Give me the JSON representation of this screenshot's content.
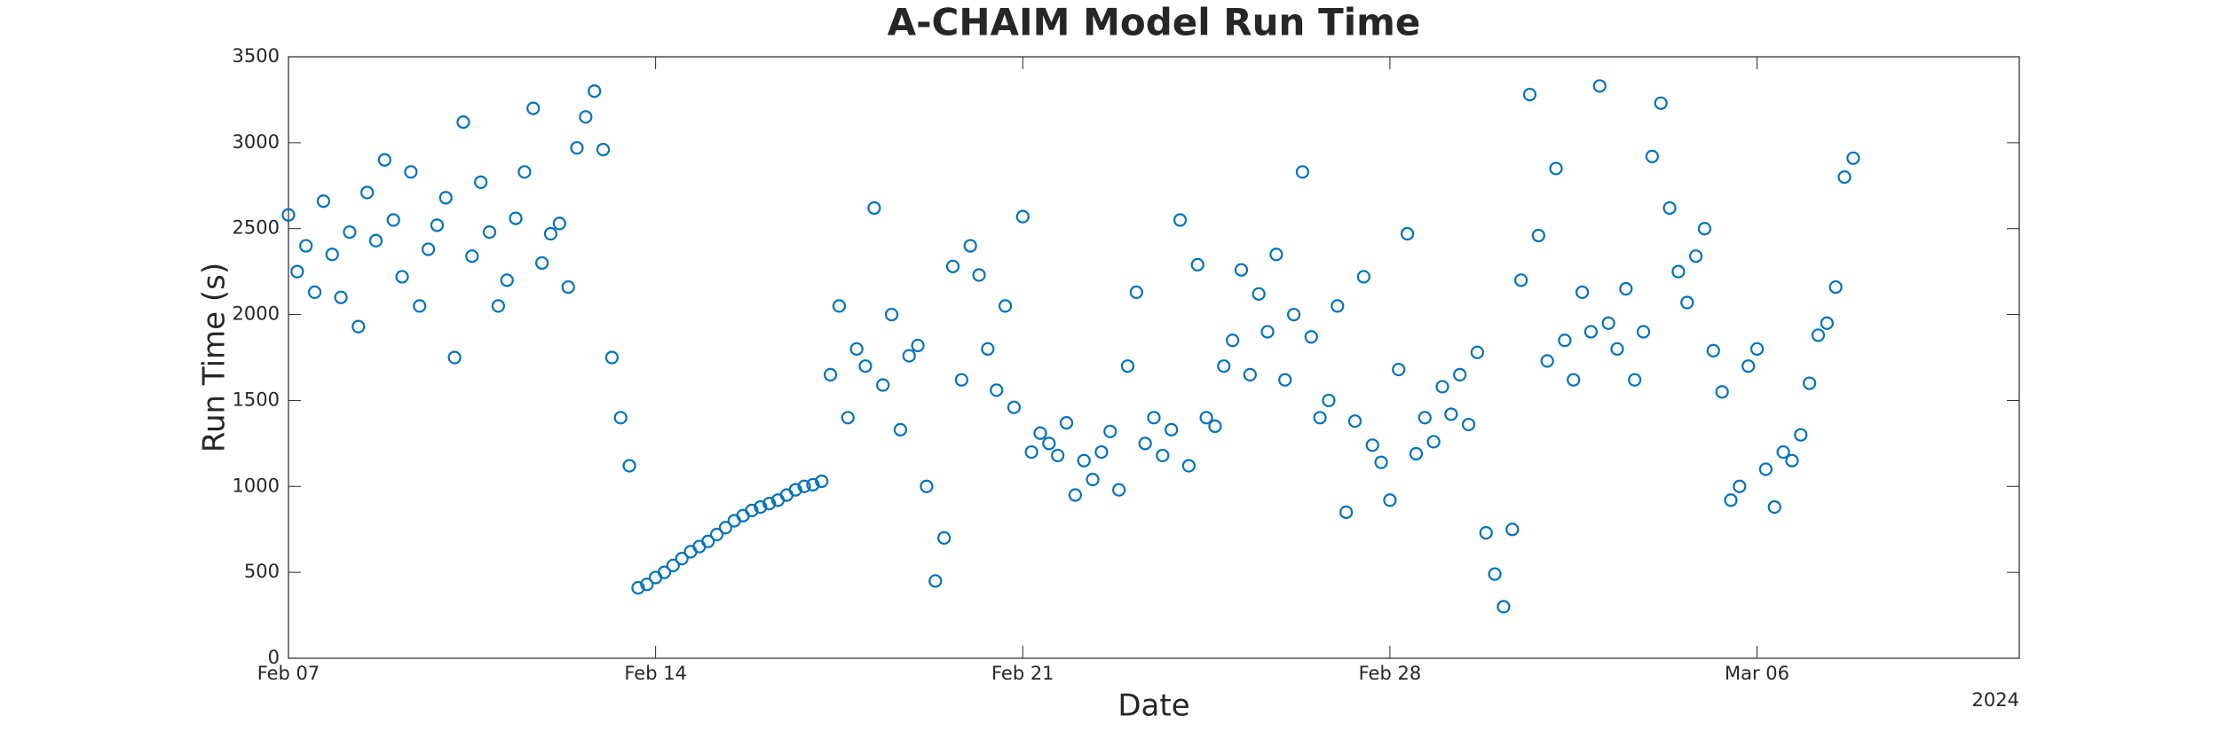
{
  "chart_data": {
    "type": "scatter",
    "title": "A-CHAIM Model Run Time",
    "x_label": "Date",
    "y_label": "Run Time (s)",
    "x_year_label": "2024",
    "color": "#0072bd",
    "grid": false,
    "xlim": [
      "2024-02-07",
      "2024-03-11"
    ],
    "xticks": [
      {
        "value": "2024-02-07",
        "label": "Feb 07"
      },
      {
        "value": "2024-02-14",
        "label": "Feb 14"
      },
      {
        "value": "2024-02-21",
        "label": "Feb 21"
      },
      {
        "value": "2024-02-28",
        "label": "Feb 28"
      },
      {
        "value": "2024-03-06",
        "label": "Mar 06"
      }
    ],
    "ylim": [
      0,
      3500
    ],
    "yticks": [
      0,
      500,
      1000,
      1500,
      2000,
      2500,
      3000,
      3500
    ],
    "x": [
      "2024-02-07T00:00",
      "2024-02-07T04:00",
      "2024-02-07T08:00",
      "2024-02-07T12:00",
      "2024-02-07T16:00",
      "2024-02-07T20:00",
      "2024-02-08T00:00",
      "2024-02-08T04:00",
      "2024-02-08T08:00",
      "2024-02-08T12:00",
      "2024-02-08T16:00",
      "2024-02-08T20:00",
      "2024-02-09T00:00",
      "2024-02-09T04:00",
      "2024-02-09T08:00",
      "2024-02-09T12:00",
      "2024-02-09T16:00",
      "2024-02-09T20:00",
      "2024-02-10T00:00",
      "2024-02-10T04:00",
      "2024-02-10T08:00",
      "2024-02-10T12:00",
      "2024-02-10T16:00",
      "2024-02-10T20:00",
      "2024-02-11T00:00",
      "2024-02-11T04:00",
      "2024-02-11T08:00",
      "2024-02-11T12:00",
      "2024-02-11T16:00",
      "2024-02-11T20:00",
      "2024-02-12T00:00",
      "2024-02-12T04:00",
      "2024-02-12T08:00",
      "2024-02-12T12:00",
      "2024-02-12T16:00",
      "2024-02-12T20:00",
      "2024-02-13T00:00",
      "2024-02-13T04:00",
      "2024-02-13T08:00",
      "2024-02-13T12:00",
      "2024-02-13T16:00",
      "2024-02-13T20:00",
      "2024-02-14T00:00",
      "2024-02-14T04:00",
      "2024-02-14T08:00",
      "2024-02-14T12:00",
      "2024-02-14T16:00",
      "2024-02-14T20:00",
      "2024-02-15T00:00",
      "2024-02-15T04:00",
      "2024-02-15T08:00",
      "2024-02-15T12:00",
      "2024-02-15T16:00",
      "2024-02-15T20:00",
      "2024-02-16T00:00",
      "2024-02-16T04:00",
      "2024-02-16T08:00",
      "2024-02-16T12:00",
      "2024-02-16T16:00",
      "2024-02-16T20:00",
      "2024-02-17T00:00",
      "2024-02-17T04:00",
      "2024-02-17T08:00",
      "2024-02-17T12:00",
      "2024-02-17T16:00",
      "2024-02-17T20:00",
      "2024-02-18T00:00",
      "2024-02-18T04:00",
      "2024-02-18T08:00",
      "2024-02-18T12:00",
      "2024-02-18T16:00",
      "2024-02-18T20:00",
      "2024-02-19T00:00",
      "2024-02-19T04:00",
      "2024-02-19T08:00",
      "2024-02-19T12:00",
      "2024-02-19T16:00",
      "2024-02-19T20:00",
      "2024-02-20T00:00",
      "2024-02-20T04:00",
      "2024-02-20T08:00",
      "2024-02-20T12:00",
      "2024-02-20T16:00",
      "2024-02-20T20:00",
      "2024-02-21T00:00",
      "2024-02-21T04:00",
      "2024-02-21T08:00",
      "2024-02-21T12:00",
      "2024-02-21T16:00",
      "2024-02-21T20:00",
      "2024-02-22T00:00",
      "2024-02-22T04:00",
      "2024-02-22T08:00",
      "2024-02-22T12:00",
      "2024-02-22T16:00",
      "2024-02-22T20:00",
      "2024-02-23T00:00",
      "2024-02-23T04:00",
      "2024-02-23T08:00",
      "2024-02-23T12:00",
      "2024-02-23T16:00",
      "2024-02-23T20:00",
      "2024-02-24T00:00",
      "2024-02-24T04:00",
      "2024-02-24T08:00",
      "2024-02-24T12:00",
      "2024-02-24T16:00",
      "2024-02-24T20:00",
      "2024-02-25T00:00",
      "2024-02-25T04:00",
      "2024-02-25T08:00",
      "2024-02-25T12:00",
      "2024-02-25T16:00",
      "2024-02-25T20:00",
      "2024-02-26T00:00",
      "2024-02-26T04:00",
      "2024-02-26T08:00",
      "2024-02-26T12:00",
      "2024-02-26T16:00",
      "2024-02-26T20:00",
      "2024-02-27T00:00",
      "2024-02-27T04:00",
      "2024-02-27T08:00",
      "2024-02-27T12:00",
      "2024-02-27T16:00",
      "2024-02-27T20:00",
      "2024-02-28T00:00",
      "2024-02-28T04:00",
      "2024-02-28T08:00",
      "2024-02-28T12:00",
      "2024-02-28T16:00",
      "2024-02-28T20:00",
      "2024-02-29T00:00",
      "2024-02-29T04:00",
      "2024-02-29T08:00",
      "2024-02-29T12:00",
      "2024-02-29T16:00",
      "2024-02-29T20:00",
      "2024-03-01T00:00",
      "2024-03-01T04:00",
      "2024-03-01T08:00",
      "2024-03-01T12:00",
      "2024-03-01T16:00",
      "2024-03-01T20:00",
      "2024-03-02T00:00",
      "2024-03-02T04:00",
      "2024-03-02T08:00",
      "2024-03-02T12:00",
      "2024-03-02T16:00",
      "2024-03-02T20:00",
      "2024-03-03T00:00",
      "2024-03-03T04:00",
      "2024-03-03T08:00",
      "2024-03-03T12:00",
      "2024-03-03T16:00",
      "2024-03-03T20:00",
      "2024-03-04T00:00",
      "2024-03-04T04:00",
      "2024-03-04T08:00",
      "2024-03-04T12:00",
      "2024-03-04T16:00",
      "2024-03-04T20:00",
      "2024-03-05T00:00",
      "2024-03-05T04:00",
      "2024-03-05T08:00",
      "2024-03-05T12:00",
      "2024-03-05T16:00",
      "2024-03-05T20:00",
      "2024-03-06T00:00",
      "2024-03-06T04:00",
      "2024-03-06T08:00",
      "2024-03-06T12:00",
      "2024-03-06T16:00",
      "2024-03-06T20:00",
      "2024-03-07T00:00",
      "2024-03-07T04:00",
      "2024-03-07T08:00",
      "2024-03-07T12:00",
      "2024-03-07T16:00",
      "2024-03-07T20:00"
    ],
    "values": [
      2580,
      2250,
      2400,
      2130,
      2660,
      2350,
      2100,
      2480,
      1930,
      2710,
      2430,
      2900,
      2550,
      2220,
      2830,
      2050,
      2380,
      2520,
      2680,
      1750,
      3120,
      2340,
      2770,
      2480,
      2050,
      2200,
      2560,
      2830,
      3200,
      2300,
      2470,
      2530,
      2160,
      2970,
      3150,
      3300,
      2960,
      1750,
      1400,
      1120,
      410,
      430,
      470,
      500,
      540,
      580,
      620,
      650,
      680,
      720,
      760,
      800,
      830,
      860,
      880,
      900,
      920,
      950,
      980,
      1000,
      1010,
      1030,
      1650,
      2050,
      1400,
      1800,
      1700,
      2620,
      1590,
      2000,
      1330,
      1760,
      1820,
      1000,
      450,
      700,
      2280,
      1620,
      2400,
      2230,
      1800,
      1560,
      2050,
      1460,
      2570,
      1200,
      1310,
      1250,
      1180,
      1370,
      950,
      1150,
      1040,
      1200,
      1320,
      980,
      1700,
      2130,
      1250,
      1400,
      1180,
      1330,
      2550,
      1120,
      2290,
      1400,
      1350,
      1700,
      1850,
      2260,
      1650,
      2120,
      1900,
      2350,
      1620,
      2000,
      2830,
      1870,
      1400,
      1500,
      2050,
      850,
      1380,
      2220,
      1240,
      1140,
      920,
      1680,
      2470,
      1190,
      1400,
      1260,
      1580,
      1420,
      1650,
      1360,
      1780,
      730,
      490,
      300,
      750,
      2200,
      3280,
      2460,
      1730,
      2850,
      1850,
      1620,
      2130,
      1900,
      3330,
      1950,
      1800,
      2150,
      1620,
      1900,
      2920,
      3230,
      2620,
      2250,
      2070,
      2340,
      2500,
      1790,
      1550,
      920,
      1000,
      1700,
      1800,
      1100,
      880,
      1200,
      1150,
      1300,
      1600,
      1880,
      1950,
      2160,
      2800,
      2910
    ]
  }
}
